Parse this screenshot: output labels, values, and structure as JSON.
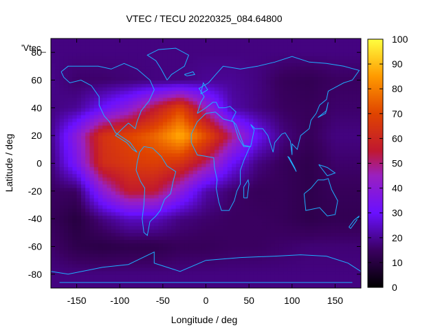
{
  "chart_data": {
    "type": "heatmap",
    "title": "VTEC / TECU 20220325_084.64800",
    "xlabel": "Longitude / deg",
    "ylabel": "Latitude / deg",
    "legend_entry": "'Vtec_",
    "x_ticks": [
      -150,
      -100,
      -50,
      0,
      50,
      100,
      150
    ],
    "y_ticks": [
      -80,
      -60,
      -40,
      -20,
      0,
      20,
      40,
      60,
      80
    ],
    "xlim": [
      -180,
      180
    ],
    "ylim": [
      -90,
      90
    ],
    "colorbar": {
      "range": [
        0,
        100
      ],
      "ticks": [
        0,
        10,
        20,
        30,
        40,
        50,
        60,
        70,
        80,
        90,
        100
      ],
      "palette": "black-purple-red-orange-yellow"
    },
    "grid": false,
    "longitude_grid": [
      -180,
      -150,
      -120,
      -90,
      -60,
      -30,
      0,
      30,
      60,
      90,
      120,
      150
    ],
    "latitude_grid": [
      -80,
      -60,
      -40,
      -20,
      0,
      20,
      40,
      60,
      80
    ],
    "vtec_grid": [
      [
        18,
        18,
        18,
        18,
        18,
        18,
        18,
        18,
        18,
        18,
        18,
        18
      ],
      [
        16,
        12,
        11,
        12,
        12,
        14,
        14,
        15,
        15,
        16,
        17,
        17
      ],
      [
        14,
        10,
        18,
        24,
        24,
        18,
        16,
        15,
        15,
        14,
        12,
        13
      ],
      [
        15,
        15,
        40,
        56,
        55,
        40,
        22,
        16,
        14,
        14,
        12,
        14
      ],
      [
        17,
        35,
        62,
        66,
        68,
        64,
        50,
        30,
        18,
        14,
        12,
        16
      ],
      [
        19,
        40,
        64,
        70,
        76,
        88,
        72,
        50,
        30,
        18,
        14,
        18
      ],
      [
        18,
        20,
        30,
        40,
        55,
        70,
        45,
        22,
        18,
        15,
        14,
        16
      ],
      [
        19,
        16,
        16,
        17,
        18,
        18,
        20,
        20,
        18,
        14,
        13,
        15
      ],
      [
        18,
        18,
        18,
        18,
        18,
        18,
        18,
        18,
        18,
        18,
        18,
        18
      ]
    ],
    "coastline_color": "#1fb0ff"
  }
}
